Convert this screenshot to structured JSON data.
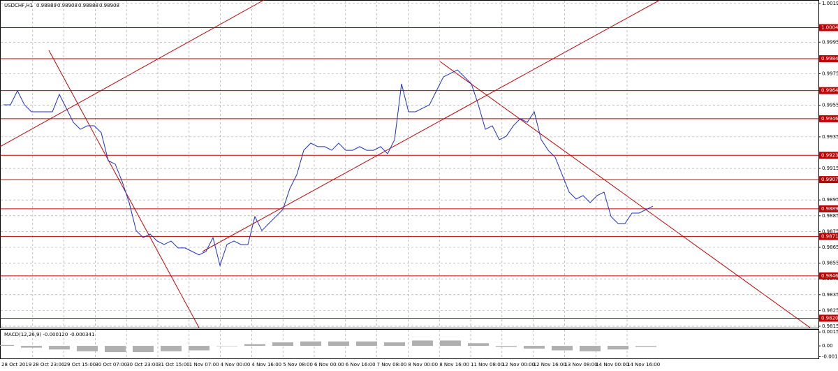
{
  "header": {
    "symbol": "USDCHF,H1",
    "ohlc": [
      0.98889,
      0.98908,
      0.98888,
      0.98908
    ]
  },
  "chart_data": [
    {
      "type": "line",
      "color": "#1c2fc8",
      "values": [
        0.99553,
        0.99553,
        0.99642,
        0.99553,
        0.99509,
        0.99509,
        0.99509,
        0.99509,
        0.99619,
        0.99531,
        0.99442,
        0.99398,
        0.9942,
        0.9942,
        0.99376,
        0.99199,
        0.99177,
        0.99066,
        0.98933,
        0.98756,
        0.98712,
        0.98734,
        0.9869,
        0.98668,
        0.9869,
        0.98646,
        0.98646,
        0.98624,
        0.98602,
        0.98624,
        0.98712,
        0.98535,
        0.98668,
        0.9869,
        0.98668,
        0.98668,
        0.98845,
        0.98756,
        0.98801,
        0.98845,
        0.98889,
        0.99022,
        0.9911,
        0.99265,
        0.9931,
        0.99288,
        0.99288,
        0.99265,
        0.9931,
        0.99265,
        0.99265,
        0.99288,
        0.99265,
        0.99265,
        0.99288,
        0.99243,
        0.99332,
        0.99686,
        0.99509,
        0.99509,
        0.99531,
        0.99553,
        0.99642,
        0.9973,
        0.99752,
        0.99774,
        0.9973,
        0.99686,
        0.99553,
        0.99398,
        0.9942,
        0.99332,
        0.99354,
        0.9942,
        0.99465,
        0.99442,
        0.99509,
        0.99332,
        0.99265,
        0.99221,
        0.9911,
        0.99,
        0.98956,
        0.98978,
        0.98933,
        0.98978,
        0.99,
        0.98845,
        0.98801,
        0.98801,
        0.98867,
        0.98867,
        0.98889,
        0.98911
      ],
      "ylim": [
        0.98141,
        1.00217
      ],
      "yticks": [
        1.00195,
        {
          "value": 0.9995,
          "label": "0.99950"
        },
        {
          "value": 0.9975,
          "label": "0.99750"
        },
        {
          "value": 0.9955,
          "label": "0.99550"
        },
        {
          "value": 0.9935,
          "label": "0.99350"
        },
        {
          "value": 0.9915,
          "label": "0.99150"
        },
        {
          "value": 0.9895,
          "label": "0.98950"
        },
        {
          "value": 0.9885,
          "label": "0.98850"
        },
        {
          "value": 0.9875,
          "label": "0.98750"
        },
        {
          "value": 0.9865,
          "label": "0.98650"
        },
        {
          "value": 0.9855,
          "label": "0.98550"
        },
        {
          "value": 0.9845,
          "label": "0.98450"
        },
        {
          "value": 0.9835,
          "label": "0.98350"
        },
        {
          "value": 0.9825,
          "label": "0.98250"
        },
        {
          "value": 0.9815,
          "label": "0.98150"
        }
      ],
      "levels": [
        1.00042,
        0.99845,
        0.99643,
        0.99465,
        0.99233,
        0.99079,
        0.98894,
        0.98719,
        0.98469,
        0.98201
      ],
      "level_color": "#c00000",
      "grid": true,
      "xtick_labels": [
        "28 Oct 2019",
        "28 Oct 23:00",
        "29 Oct 15:00",
        "30 Oct 07:00",
        "30 Oct 23:00",
        "31 Oct 15:00",
        "1 Nov 07:00",
        "4 Nov 00:00",
        "4 Nov 16:00",
        "5 Nov 08:00",
        "6 Nov 00:00",
        "6 Nov 16:00",
        "7 Nov 08:00",
        "8 Nov 00:00",
        "8 Nov 16:00",
        "11 Nov 08:00",
        "12 Nov 00:00",
        "12 Nov 16:00",
        "13 Nov 08:00",
        "14 Nov 00:00",
        "14 Nov 16:00"
      ]
    },
    {
      "type": "bar",
      "title": "MACD(12,26,9) -0.000120 -0.000341",
      "color": "#b0b0b0",
      "values": [
        0.0001,
        -0.0002,
        -0.0004,
        -0.0006,
        -0.0007,
        -0.0007,
        -0.0006,
        -0.0005,
        0.0,
        0.0002,
        0.0004,
        0.0005,
        0.0005,
        0.0005,
        0.0004,
        0.0006,
        0.0006,
        0.0003,
        -0.0001,
        -0.0003,
        -0.0005,
        -0.0006,
        -0.0004,
        -0.0001
      ],
      "ylim": [
        -0.0014,
        0.0018
      ],
      "yticks": [
        0.001549,
        {
          "value": 0,
          "label": "0.00"
        },
        -0.001204
      ]
    }
  ]
}
